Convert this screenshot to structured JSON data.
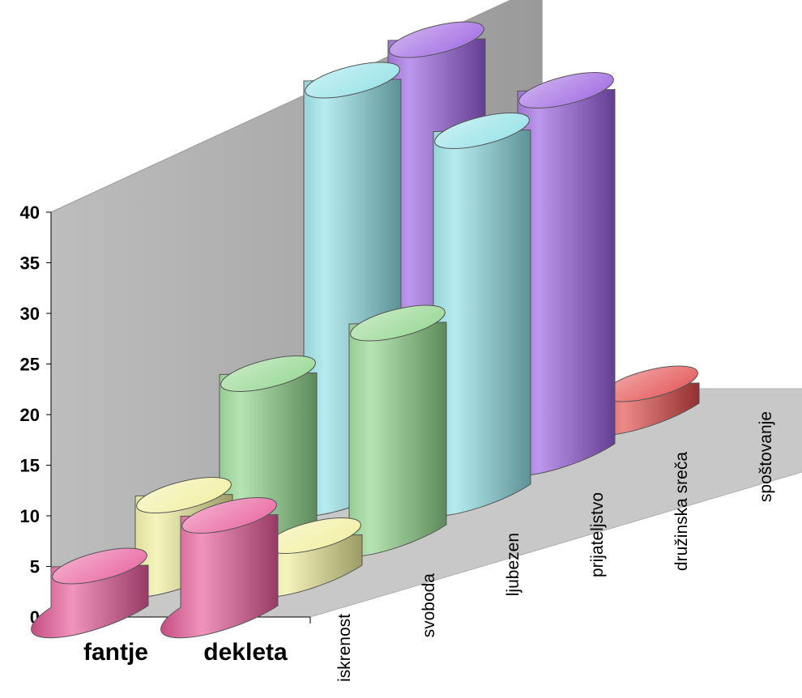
{
  "colors": {
    "iskrenost": "#e85a9a",
    "svoboda": "#f0ee9a",
    "ljubezen": "#8fd58a",
    "prijateljstvo": "#8fe0e6",
    "druzinska_sreca": "#9a5fe0",
    "spostovanje": "#e24a4a",
    "wall": "#a8a8a8",
    "floor": "#c8c8c8"
  },
  "chart_data": {
    "type": "bar",
    "subtype": "3d-cylinder",
    "title": "",
    "xlabel": "",
    "ylabel": "",
    "ylim": [
      0,
      40
    ],
    "yticks": [
      "0",
      "5",
      "10",
      "15",
      "20",
      "25",
      "30",
      "35",
      "40"
    ],
    "categories": [
      "fantje",
      "dekleta"
    ],
    "series": [
      {
        "name": "iskrenost",
        "values": [
          4,
          9
        ]
      },
      {
        "name": "svoboda",
        "values": [
          7,
          3
        ]
      },
      {
        "name": "ljubezen",
        "values": [
          15,
          20
        ]
      },
      {
        "name": "prijateljstvo",
        "values": [
          40,
          35
        ]
      },
      {
        "name": "družinska sreča",
        "values": [
          40,
          35
        ]
      },
      {
        "name": "spoštovanje",
        "values": [
          0,
          2
        ]
      }
    ]
  }
}
